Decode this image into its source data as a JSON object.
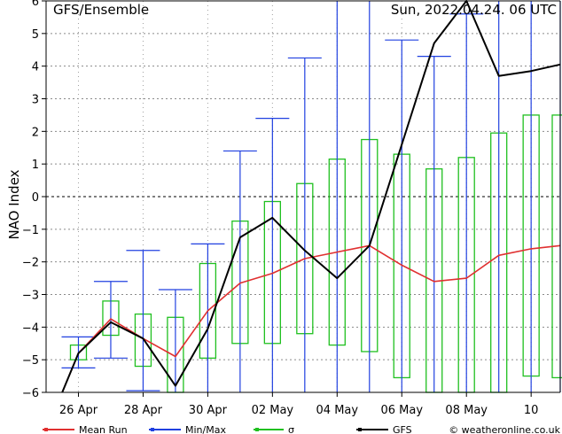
{
  "header": {
    "left_title": "GFS/Ensemble",
    "right_title": "Sun, 2022.04.24. 06 UTC"
  },
  "legend": {
    "items": [
      {
        "label": "Mean Run",
        "color": "#e03030"
      },
      {
        "label": "Min/Max",
        "color": "#2040e0"
      },
      {
        "label": "σ",
        "color": "#20c020"
      },
      {
        "label": "GFS",
        "color": "#000000"
      }
    ],
    "credit": "© weatheronline.co.uk"
  },
  "chart_data": {
    "type": "line",
    "ylabel": "NAO Index",
    "xlabel": "",
    "ylim": [
      -6,
      6
    ],
    "yticks": [
      -6,
      -5,
      -4,
      -3,
      -2,
      -1,
      0,
      1,
      2,
      3,
      4,
      5,
      6
    ],
    "xlim": [
      0,
      15.9
    ],
    "x_ticks": [
      {
        "label": "26 Apr",
        "x": 1
      },
      {
        "label": "28 Apr",
        "x": 3
      },
      {
        "label": "30 Apr",
        "x": 5
      },
      {
        "label": "02 May",
        "x": 7
      },
      {
        "label": "04 May",
        "x": 9
      },
      {
        "label": "06 May",
        "x": 11
      },
      {
        "label": "08 May",
        "x": 13
      },
      {
        "label": "10",
        "x": 15
      }
    ],
    "x": [
      0.5,
      1.0,
      2.0,
      3.0,
      4.0,
      5.0,
      6.0,
      7.0,
      8.0,
      9.0,
      10.0,
      11.0,
      12.0,
      13.0,
      14.0,
      15.0,
      15.9
    ],
    "series": [
      {
        "name": "Mean Run",
        "color": "#e03030",
        "values": [
          -6.0,
          -4.8,
          -3.75,
          -4.35,
          -4.9,
          -3.5,
          -2.65,
          -2.35,
          -1.9,
          -1.7,
          -1.5,
          -2.1,
          -2.6,
          -2.5,
          -1.8,
          -1.6,
          -1.5
        ]
      },
      {
        "name": "GFS",
        "color": "#000000",
        "values": [
          -6.0,
          -4.8,
          -3.85,
          -4.35,
          -5.8,
          -4.05,
          -1.25,
          -0.65,
          -1.65,
          -2.5,
          -1.5,
          1.6,
          4.7,
          6.0,
          3.7,
          3.85,
          4.05
        ]
      }
    ],
    "minmax": {
      "name": "Min/Max",
      "color": "#2040e0",
      "x": [
        1.0,
        2.0,
        3.0,
        4.0,
        5.0,
        6.0,
        7.0,
        8.0,
        9.0,
        10.0,
        11.0,
        12.0,
        13.0,
        14.0,
        15.0,
        15.9
      ],
      "min": [
        -5.25,
        -4.95,
        -5.95,
        -6.0,
        -6.0,
        -6.0,
        -6.0,
        -6.0,
        -6.0,
        -6.0,
        -6.0,
        -6.0,
        -6.0,
        -6.0,
        -6.0,
        -6.0
      ],
      "max": [
        -4.3,
        -2.6,
        -1.65,
        -2.85,
        -1.45,
        1.4,
        2.4,
        4.25,
        6.0,
        6.0,
        4.8,
        4.3,
        5.6,
        6.0,
        6.0,
        6.0
      ]
    },
    "sigma": {
      "name": "σ",
      "color": "#20c020",
      "x": [
        1.0,
        2.0,
        3.0,
        4.0,
        5.0,
        6.0,
        7.0,
        8.0,
        9.0,
        10.0,
        11.0,
        12.0,
        13.0,
        14.0,
        15.0,
        15.9
      ],
      "lower": [
        -5.0,
        -4.25,
        -5.2,
        -6.0,
        -4.95,
        -4.5,
        -4.5,
        -4.2,
        -4.55,
        -4.75,
        -5.55,
        -6.0,
        -6.0,
        -6.0,
        -5.5,
        -5.55
      ],
      "upper": [
        -4.55,
        -3.2,
        -3.6,
        -3.7,
        -2.05,
        -0.75,
        -0.15,
        0.4,
        1.15,
        1.75,
        1.3,
        0.85,
        1.2,
        1.95,
        2.5,
        2.5
      ]
    },
    "grid": true,
    "zero_line": "dashed"
  }
}
